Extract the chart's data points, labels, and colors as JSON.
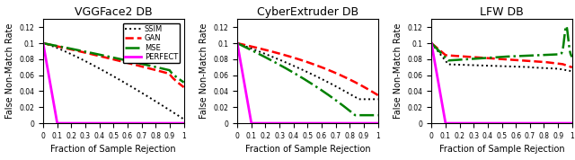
{
  "titles": [
    "VGGFace2 DB",
    "CyberExtruder DB",
    "LFW DB"
  ],
  "xlabel": "Fraction of Sample Rejection",
  "ylabel": "False Non-Match Rate",
  "xlim": [
    0,
    1
  ],
  "ylim": [
    0,
    0.13
  ],
  "yticks": [
    0,
    0.02,
    0.04,
    0.06,
    0.08,
    0.1,
    0.12
  ],
  "xticks": [
    0,
    0.1,
    0.2,
    0.3,
    0.4,
    0.5,
    0.6,
    0.7,
    0.8,
    0.9,
    1.0
  ],
  "xtick_labels": [
    "0",
    "0.1",
    "0.2",
    "0.3",
    "0.4",
    "0.5",
    "0.6",
    "0.7",
    "0.8",
    "0.9",
    "1"
  ],
  "ytick_labels": [
    "0",
    "0.02",
    "0.04",
    "0.06",
    "0.08",
    "0.1",
    "0.12"
  ],
  "legend_labels": [
    "SSIM",
    "GAN",
    "MSE",
    "PERFECT"
  ],
  "figsize": [
    6.4,
    1.78
  ],
  "dpi": 100
}
